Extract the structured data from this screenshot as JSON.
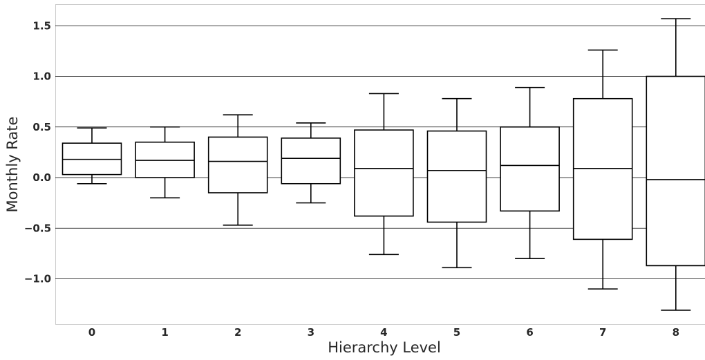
{
  "chart_data": {
    "type": "box",
    "title": "",
    "xlabel": "Hierarchy Level",
    "ylabel": "Monthly Rate",
    "ylim": [
      -1.45,
      1.72
    ],
    "grid": true,
    "categories": [
      "0",
      "1",
      "2",
      "3",
      "4",
      "5",
      "6",
      "7",
      "8"
    ],
    "y_ticks": [
      {
        "value": 1.5,
        "label": "1.5"
      },
      {
        "value": 1.0,
        "label": "1.0"
      },
      {
        "value": 0.5,
        "label": "0.5"
      },
      {
        "value": 0.0,
        "label": "0.0"
      },
      {
        "value": -0.5,
        "label": "−0.5"
      },
      {
        "value": -1.0,
        "label": "−1.0"
      }
    ],
    "boxes": [
      {
        "level": "0",
        "whisker_low": -0.06,
        "q1": 0.03,
        "median": 0.18,
        "q3": 0.34,
        "whisker_high": 0.49
      },
      {
        "level": "1",
        "whisker_low": -0.2,
        "q1": 0.0,
        "median": 0.17,
        "q3": 0.35,
        "whisker_high": 0.5
      },
      {
        "level": "2",
        "whisker_low": -0.47,
        "q1": -0.15,
        "median": 0.16,
        "q3": 0.4,
        "whisker_high": 0.62
      },
      {
        "level": "3",
        "whisker_low": -0.25,
        "q1": -0.06,
        "median": 0.19,
        "q3": 0.39,
        "whisker_high": 0.54
      },
      {
        "level": "4",
        "whisker_low": -0.76,
        "q1": -0.38,
        "median": 0.09,
        "q3": 0.47,
        "whisker_high": 0.83
      },
      {
        "level": "5",
        "whisker_low": -0.89,
        "q1": -0.44,
        "median": 0.07,
        "q3": 0.46,
        "whisker_high": 0.78
      },
      {
        "level": "6",
        "whisker_low": -0.8,
        "q1": -0.33,
        "median": 0.12,
        "q3": 0.5,
        "whisker_high": 0.89
      },
      {
        "level": "7",
        "whisker_low": -1.1,
        "q1": -0.61,
        "median": 0.09,
        "q3": 0.78,
        "whisker_high": 1.26
      },
      {
        "level": "8",
        "whisker_low": -1.31,
        "q1": -0.87,
        "median": -0.02,
        "q3": 1.0,
        "whisker_high": 1.57
      }
    ],
    "colors": {
      "box_edge": "#000000",
      "box_fill": "#ffffff",
      "grid": "#000000",
      "spine": "#cccccc",
      "text": "#262626"
    }
  }
}
